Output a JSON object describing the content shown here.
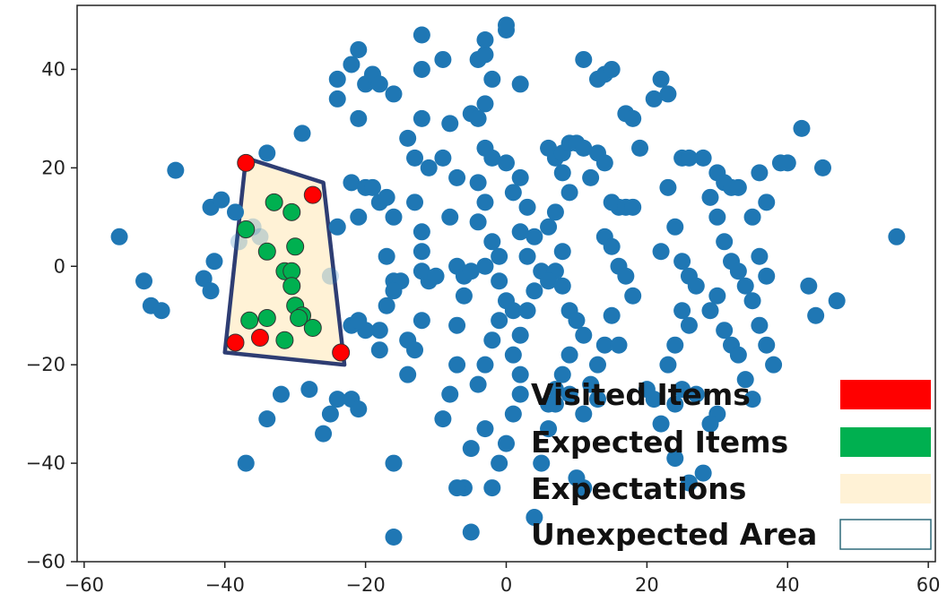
{
  "chart_data": {
    "type": "scatter",
    "title": "",
    "xlabel": "",
    "ylabel": "",
    "xlim": [
      -61,
      61
    ],
    "ylim": [
      -60,
      53
    ],
    "xticks": [
      -60,
      -40,
      -20,
      0,
      20,
      40,
      60
    ],
    "yticks": [
      -60,
      -40,
      -20,
      0,
      20,
      40
    ],
    "xtick_labels": [
      "−60",
      "−40",
      "−20",
      "0",
      "20",
      "40",
      "60"
    ],
    "ytick_labels": [
      "−60",
      "−40",
      "−20",
      "0",
      "20",
      "40"
    ],
    "grid": false,
    "legend": {
      "placement": "bottom-right",
      "entries": [
        {
          "label": "Visited Items",
          "color": "#ff0000"
        },
        {
          "label": "Expected Items",
          "color": "#00b050"
        },
        {
          "label": "Expectations",
          "color": "#fff2d6"
        },
        {
          "label": "Unexpected Area",
          "color": "#ffffff"
        }
      ]
    },
    "colors": {
      "items": "#1f77b4",
      "visited": "#ff0000",
      "expected": "#00b050",
      "expectation_fill": "#fff2d6",
      "expectation_border": "#2e3d73",
      "unexpected_border": "#2e6a7a"
    },
    "expectation_region": [
      [
        -37,
        22
      ],
      [
        -26,
        17
      ],
      [
        -23,
        -20
      ],
      [
        -40,
        -17.5
      ]
    ],
    "series": [
      {
        "role": "items",
        "points": [
          [
            -55,
            6
          ],
          [
            -51.5,
            -3
          ],
          [
            -50.5,
            -8
          ],
          [
            -49,
            -9
          ],
          [
            -47,
            19.5
          ],
          [
            -42,
            12
          ],
          [
            -40.5,
            13.5
          ],
          [
            -41.5,
            1
          ],
          [
            -43,
            -2.5
          ],
          [
            -42,
            -5
          ],
          [
            -38.5,
            11
          ],
          [
            -38,
            5
          ],
          [
            -36,
            8
          ],
          [
            -35,
            6
          ],
          [
            -34,
            23
          ],
          [
            -32,
            -26
          ],
          [
            -34,
            -31
          ],
          [
            -37,
            -40
          ],
          [
            -29,
            27
          ],
          [
            -28,
            -25
          ],
          [
            -26,
            -34
          ],
          [
            -25,
            -30
          ],
          [
            -24,
            -27
          ],
          [
            -25,
            -2
          ],
          [
            -24,
            8
          ],
          [
            -22,
            -27
          ],
          [
            -21,
            -29
          ],
          [
            -24,
            34
          ],
          [
            -24,
            38
          ],
          [
            -22,
            41
          ],
          [
            -21,
            44
          ],
          [
            -20,
            37
          ],
          [
            -19,
            39
          ],
          [
            -18,
            37
          ],
          [
            -21,
            30
          ],
          [
            -22,
            17
          ],
          [
            -21,
            10
          ],
          [
            -20,
            16
          ],
          [
            -19,
            16
          ],
          [
            -18,
            13
          ],
          [
            -17,
            14
          ],
          [
            -16,
            10
          ],
          [
            -17,
            2
          ],
          [
            -16,
            -3
          ],
          [
            -17,
            -8
          ],
          [
            -15,
            -3
          ],
          [
            -16,
            -5
          ],
          [
            -18,
            -13
          ],
          [
            -18,
            -17
          ],
          [
            -22,
            -12
          ],
          [
            -20,
            -13
          ],
          [
            -21,
            -11
          ],
          [
            -16,
            35
          ],
          [
            -14,
            26
          ],
          [
            -13,
            22
          ],
          [
            -13,
            13
          ],
          [
            -12,
            7
          ],
          [
            -11,
            -3
          ],
          [
            -12,
            -1
          ],
          [
            -14,
            -15
          ],
          [
            -13,
            -17
          ],
          [
            -14,
            -22
          ],
          [
            -12,
            -11
          ],
          [
            -16,
            -40
          ],
          [
            -16,
            -55
          ],
          [
            -12,
            3
          ],
          [
            -10,
            -2
          ],
          [
            -12,
            47
          ],
          [
            -12,
            40
          ],
          [
            -9,
            42
          ],
          [
            -12,
            30
          ],
          [
            -11,
            20
          ],
          [
            -8,
            29
          ],
          [
            -9,
            22
          ],
          [
            -7,
            18
          ],
          [
            -8,
            10
          ],
          [
            -7,
            0
          ],
          [
            -6,
            -2
          ],
          [
            -5,
            -1
          ],
          [
            -6,
            -6
          ],
          [
            -7,
            -12
          ],
          [
            -7,
            -20
          ],
          [
            -8,
            -26
          ],
          [
            -9,
            -31
          ],
          [
            -6,
            -45
          ],
          [
            -7,
            -45
          ],
          [
            -4,
            42
          ],
          [
            -3,
            43
          ],
          [
            -2,
            38
          ],
          [
            -3,
            46
          ],
          [
            0,
            48
          ],
          [
            0,
            49
          ],
          [
            2,
            37
          ],
          [
            -3,
            33
          ],
          [
            -5,
            31
          ],
          [
            -4,
            30
          ],
          [
            -3,
            24
          ],
          [
            -2,
            22
          ],
          [
            -4,
            17
          ],
          [
            -3,
            13
          ],
          [
            -4,
            9
          ],
          [
            -2,
            5
          ],
          [
            -1,
            2
          ],
          [
            -3,
            0
          ],
          [
            -1,
            -3
          ],
          [
            0,
            -7
          ],
          [
            1,
            -9
          ],
          [
            -1,
            -11
          ],
          [
            -2,
            -15
          ],
          [
            -3,
            -20
          ],
          [
            -4,
            -24
          ],
          [
            -3,
            -33
          ],
          [
            -5,
            -37
          ],
          [
            -5,
            -54
          ],
          [
            -2,
            -45
          ],
          [
            0,
            21
          ],
          [
            2,
            18
          ],
          [
            1,
            15
          ],
          [
            3,
            12
          ],
          [
            2,
            7
          ],
          [
            4,
            6
          ],
          [
            3,
            2
          ],
          [
            5,
            -1
          ],
          [
            4,
            -5
          ],
          [
            3,
            -9
          ],
          [
            2,
            -14
          ],
          [
            1,
            -18
          ],
          [
            2,
            -22
          ],
          [
            2,
            -26
          ],
          [
            1,
            -30
          ],
          [
            0,
            -36
          ],
          [
            -1,
            -40
          ],
          [
            6,
            24
          ],
          [
            7,
            22
          ],
          [
            8,
            23
          ],
          [
            9,
            25
          ],
          [
            10,
            25
          ],
          [
            11,
            24
          ],
          [
            8,
            19
          ],
          [
            9,
            15
          ],
          [
            7,
            11
          ],
          [
            6,
            8
          ],
          [
            8,
            3
          ],
          [
            7,
            -1
          ],
          [
            6,
            -3
          ],
          [
            8,
            -4
          ],
          [
            9,
            -9
          ],
          [
            10,
            -11
          ],
          [
            11,
            -14
          ],
          [
            9,
            -18
          ],
          [
            8,
            -22
          ],
          [
            9,
            -26
          ],
          [
            7,
            -28
          ],
          [
            6,
            -33
          ],
          [
            5,
            -40
          ],
          [
            4,
            -51
          ],
          [
            6,
            -28
          ],
          [
            7,
            -25
          ],
          [
            11,
            42
          ],
          [
            13,
            38
          ],
          [
            14,
            39
          ],
          [
            15,
            40
          ],
          [
            17,
            31
          ],
          [
            18,
            30
          ],
          [
            19,
            24
          ],
          [
            13,
            23
          ],
          [
            14,
            21
          ],
          [
            12,
            18
          ],
          [
            16,
            12
          ],
          [
            15,
            13
          ],
          [
            17,
            12
          ],
          [
            18,
            12
          ],
          [
            14,
            6
          ],
          [
            15,
            4
          ],
          [
            16,
            0
          ],
          [
            17,
            -2
          ],
          [
            18,
            -6
          ],
          [
            15,
            -10
          ],
          [
            14,
            -16
          ],
          [
            16,
            -16
          ],
          [
            13,
            -20
          ],
          [
            12,
            -24
          ],
          [
            13,
            -27
          ],
          [
            11,
            -30
          ],
          [
            10,
            -43
          ],
          [
            11,
            -45
          ],
          [
            21,
            34
          ],
          [
            22,
            38
          ],
          [
            23,
            35
          ],
          [
            25,
            22
          ],
          [
            26,
            22
          ],
          [
            23,
            16
          ],
          [
            24,
            8
          ],
          [
            22,
            3
          ],
          [
            25,
            1
          ],
          [
            26,
            -2
          ],
          [
            27,
            -4
          ],
          [
            25,
            -9
          ],
          [
            26,
            -12
          ],
          [
            24,
            -16
          ],
          [
            23,
            -20
          ],
          [
            25,
            -25
          ],
          [
            24,
            -28
          ],
          [
            27,
            -26
          ],
          [
            22,
            -32
          ],
          [
            24,
            -39
          ],
          [
            26,
            -44
          ],
          [
            21,
            -27
          ],
          [
            20,
            -25
          ],
          [
            28,
            22
          ],
          [
            30,
            19
          ],
          [
            31,
            17
          ],
          [
            32,
            16
          ],
          [
            33,
            16
          ],
          [
            29,
            14
          ],
          [
            30,
            10
          ],
          [
            31,
            5
          ],
          [
            32,
            1
          ],
          [
            33,
            -1
          ],
          [
            34,
            -4
          ],
          [
            30,
            -6
          ],
          [
            29,
            -9
          ],
          [
            31,
            -13
          ],
          [
            32,
            -16
          ],
          [
            33,
            -18
          ],
          [
            34,
            -23
          ],
          [
            35,
            -27
          ],
          [
            30,
            -30
          ],
          [
            28,
            -42
          ],
          [
            29,
            -32
          ],
          [
            36,
            19
          ],
          [
            37,
            13
          ],
          [
            35,
            10
          ],
          [
            36,
            2
          ],
          [
            37,
            -2
          ],
          [
            35,
            -7
          ],
          [
            36,
            -12
          ],
          [
            37,
            -16
          ],
          [
            38,
            -20
          ],
          [
            39,
            21
          ],
          [
            40,
            21
          ],
          [
            42,
            28
          ],
          [
            43,
            -4
          ],
          [
            44,
            -10
          ],
          [
            45,
            20
          ],
          [
            47,
            -7
          ],
          [
            55.5,
            6
          ]
        ]
      },
      {
        "role": "visited",
        "points": [
          [
            -37,
            21
          ],
          [
            -27.5,
            14.5
          ],
          [
            -38.5,
            -15.5
          ],
          [
            -35,
            -14.5
          ],
          [
            -23.5,
            -17.5
          ]
        ]
      },
      {
        "role": "expected",
        "points": [
          [
            -33,
            13
          ],
          [
            -30.5,
            11
          ],
          [
            -37,
            7.5
          ],
          [
            -34,
            3
          ],
          [
            -30,
            4
          ],
          [
            -31.5,
            -1
          ],
          [
            -30.5,
            -1
          ],
          [
            -30.5,
            -4
          ],
          [
            -30,
            -8
          ],
          [
            -29,
            -10
          ],
          [
            -29.5,
            -10.5
          ],
          [
            -36.5,
            -11
          ],
          [
            -34,
            -10.5
          ],
          [
            -27.5,
            -12.5
          ],
          [
            -31.5,
            -15
          ]
        ]
      }
    ]
  }
}
